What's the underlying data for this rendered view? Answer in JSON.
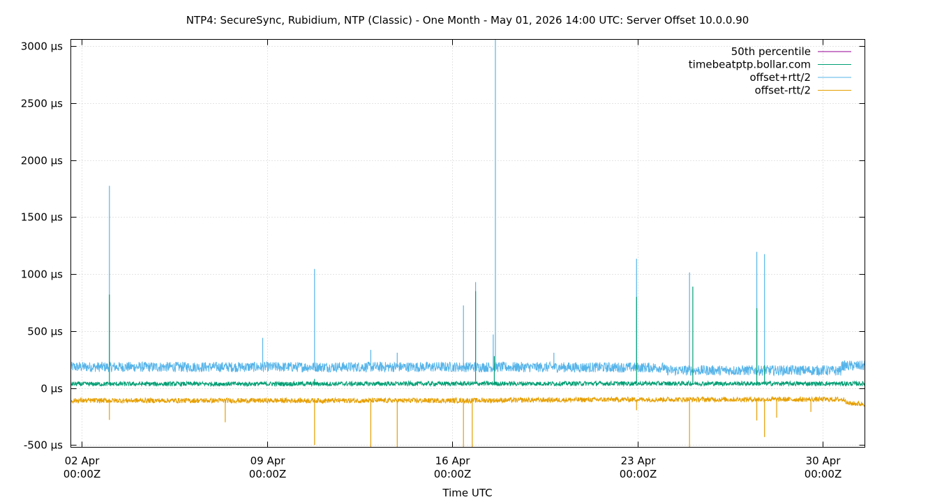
{
  "chart_data": {
    "type": "line",
    "title": "NTP4: SecureSync, Rubidium, NTP (Classic) - One Month - May 01, 2026 14:00 UTC: Server Offset 10.0.0.90",
    "xlabel": "Time UTC",
    "ylabel": "",
    "y_unit": "µs",
    "ylim": [
      -520,
      3060
    ],
    "xlim": [
      "2026-04-01T14:00Z",
      "2026-05-01T14:00Z"
    ],
    "yticks": [
      -500,
      0,
      500,
      1000,
      1500,
      2000,
      2500,
      3000
    ],
    "ytick_labels": [
      "-500 µs",
      "0 µs",
      "500 µs",
      "1000 µs",
      "1500 µs",
      "2000 µs",
      "2500 µs",
      "3000 µs"
    ],
    "xticks": [
      {
        "t": "2026-04-02T00:00Z",
        "line1": "02 Apr",
        "line2": "00:00Z"
      },
      {
        "t": "2026-04-09T00:00Z",
        "line1": "09 Apr",
        "line2": "00:00Z"
      },
      {
        "t": "2026-04-16T00:00Z",
        "line1": "16 Apr",
        "line2": "00:00Z"
      },
      {
        "t": "2026-04-23T00:00Z",
        "line1": "23 Apr",
        "line2": "00:00Z"
      },
      {
        "t": "2026-04-30T00:00Z",
        "line1": "30 Apr",
        "line2": "00:00Z"
      }
    ],
    "grid": true,
    "legend_position": "top-right",
    "series": [
      {
        "name": "50th percentile",
        "color": "#940094",
        "baseline": [],
        "noise": 0,
        "spikes": []
      },
      {
        "name": "timebeatptp.bollar.com",
        "color": "#009e73",
        "baseline": [
          [
            "2026-04-01T14:00Z",
            35
          ],
          [
            "2026-04-16T00:00Z",
            38
          ],
          [
            "2026-04-23T00:00Z",
            40
          ],
          [
            "2026-05-01T14:00Z",
            38
          ]
        ],
        "noise": 20,
        "spikes": [
          [
            "2026-04-03T01:00Z",
            820
          ],
          [
            "2026-04-10T19:00Z",
            80
          ],
          [
            "2026-04-16T21:00Z",
            850
          ],
          [
            "2026-04-17T14:00Z",
            280
          ],
          [
            "2026-04-22T23:00Z",
            800
          ],
          [
            "2026-04-25T02:00Z",
            890
          ],
          [
            "2026-04-27T12:00Z",
            700
          ],
          [
            "2026-04-27T19:00Z",
            200
          ]
        ]
      },
      {
        "name": "offset+rtt/2",
        "color": "#56b4e9",
        "baseline": [
          [
            "2026-04-01T14:00Z",
            185
          ],
          [
            "2026-04-16T00:00Z",
            185
          ],
          [
            "2026-04-24T00:00Z",
            180
          ],
          [
            "2026-04-24T01:00Z",
            155
          ],
          [
            "2026-04-30T00:00Z",
            155
          ],
          [
            "2026-04-30T16:00Z",
            150
          ],
          [
            "2026-04-30T17:00Z",
            195
          ],
          [
            "2026-05-01T14:00Z",
            195
          ]
        ],
        "noise": 45,
        "spikes": [
          [
            "2026-04-03T01:00Z",
            1775
          ],
          [
            "2026-04-08T20:00Z",
            440
          ],
          [
            "2026-04-10T19:00Z",
            1045
          ],
          [
            "2026-04-12T22:00Z",
            335
          ],
          [
            "2026-04-13T22:00Z",
            310
          ],
          [
            "2026-04-16T10:00Z",
            725
          ],
          [
            "2026-04-16T21:00Z",
            930
          ],
          [
            "2026-04-17T13:00Z",
            470
          ],
          [
            "2026-04-17T15:00Z",
            3060
          ],
          [
            "2026-04-19T20:00Z",
            310
          ],
          [
            "2026-04-22T23:00Z",
            1135
          ],
          [
            "2026-04-24T23:00Z",
            1015
          ],
          [
            "2026-04-27T12:00Z",
            1195
          ],
          [
            "2026-04-27T19:00Z",
            1175
          ]
        ]
      },
      {
        "name": "offset-rtt/2",
        "color": "#e69f00",
        "baseline": [
          [
            "2026-04-01T14:00Z",
            -110
          ],
          [
            "2026-04-16T00:00Z",
            -110
          ],
          [
            "2026-04-23T00:00Z",
            -100
          ],
          [
            "2026-04-30T20:00Z",
            -100
          ],
          [
            "2026-04-30T22:00Z",
            -135
          ],
          [
            "2026-05-01T14:00Z",
            -140
          ]
        ],
        "noise": 22,
        "spikes": [
          [
            "2026-04-03T01:00Z",
            -280
          ],
          [
            "2026-04-07T10:00Z",
            -300
          ],
          [
            "2026-04-10T19:00Z",
            -500
          ],
          [
            "2026-04-12T22:00Z",
            -520
          ],
          [
            "2026-04-13T22:00Z",
            -520
          ],
          [
            "2026-04-16T10:00Z",
            -520
          ],
          [
            "2026-04-16T18:00Z",
            -520
          ],
          [
            "2026-04-22T23:00Z",
            -195
          ],
          [
            "2026-04-24T23:00Z",
            -520
          ],
          [
            "2026-04-27T12:00Z",
            -285
          ],
          [
            "2026-04-27T19:00Z",
            -430
          ],
          [
            "2026-04-28T06:00Z",
            -260
          ],
          [
            "2026-04-29T13:00Z",
            -210
          ]
        ]
      }
    ]
  }
}
